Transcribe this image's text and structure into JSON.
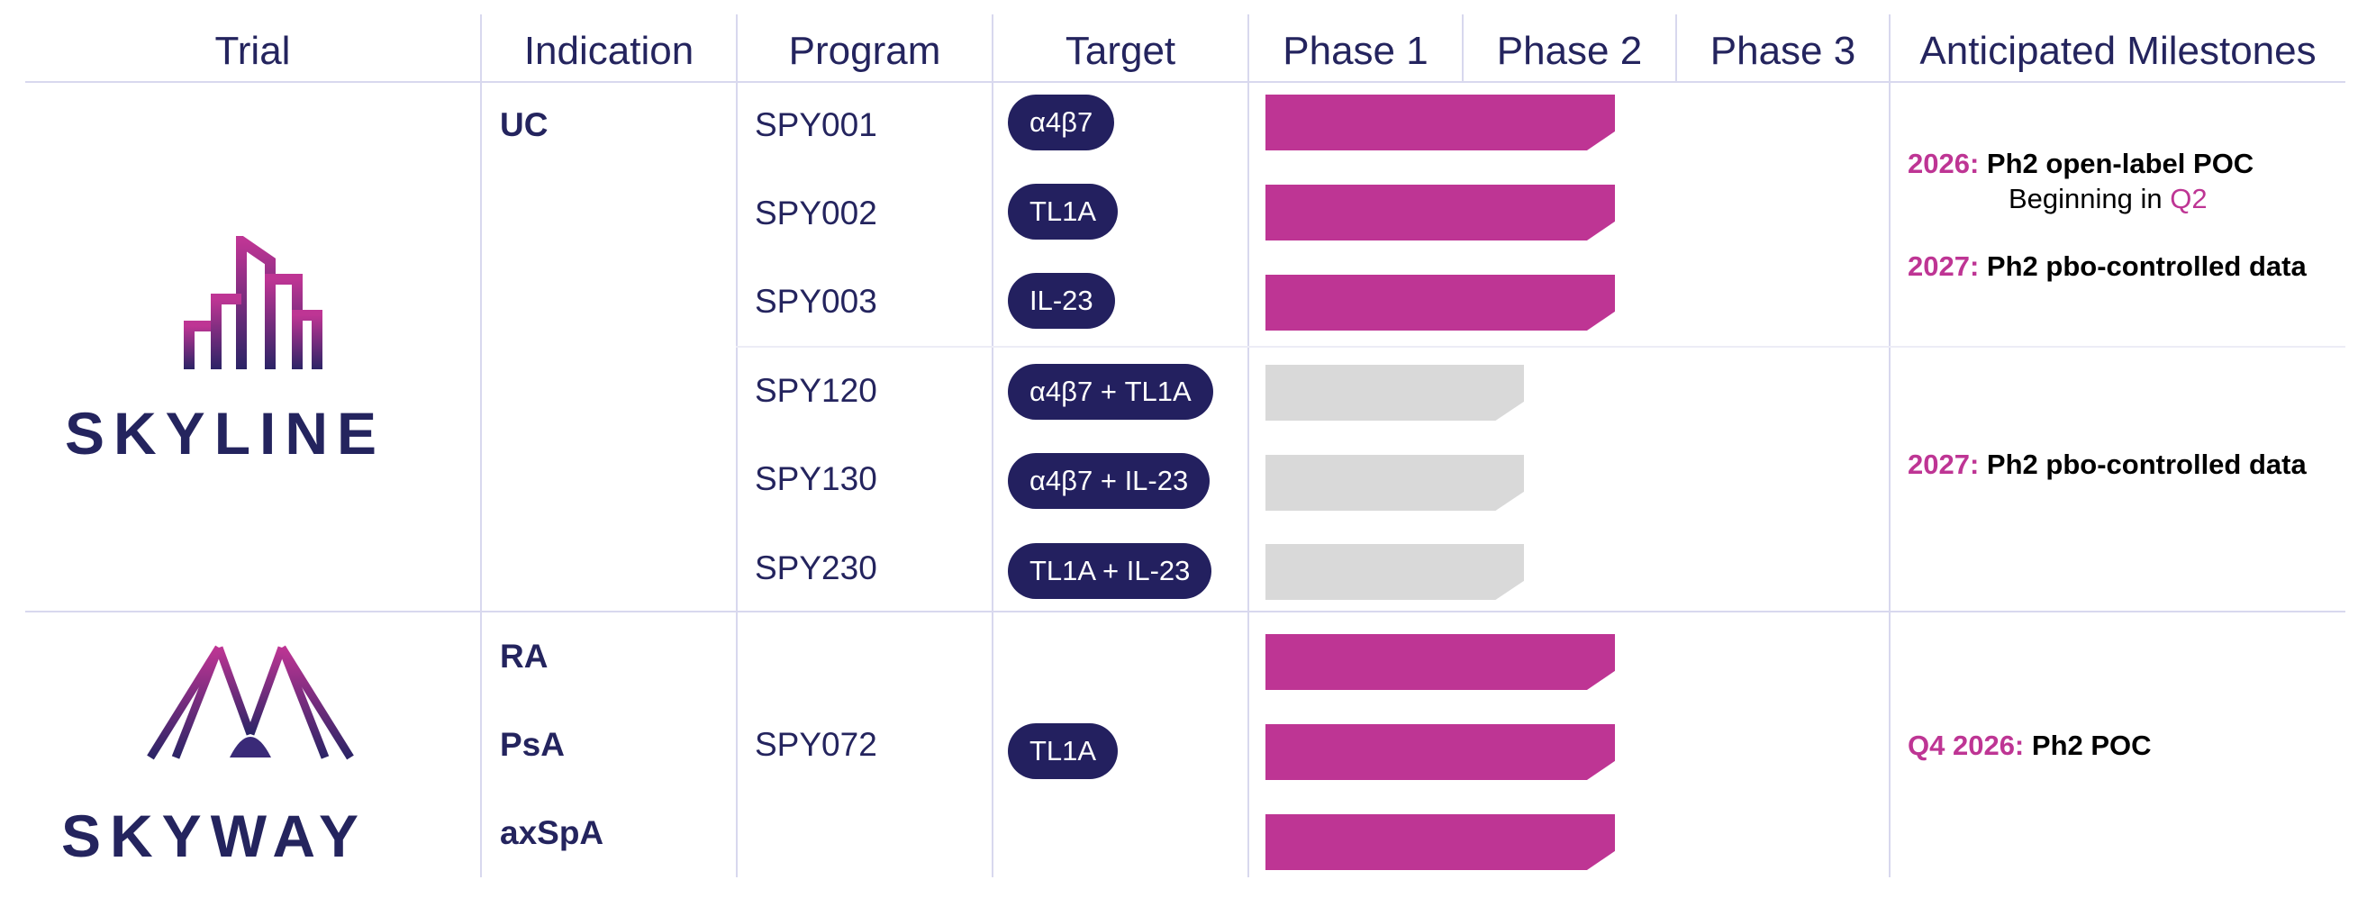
{
  "headers": {
    "trial": "Trial",
    "indication": "Indication",
    "program": "Program",
    "target": "Target",
    "phase1": "Phase 1",
    "phase2": "Phase 2",
    "phase3": "Phase 3",
    "milestones": "Anticipated Milestones"
  },
  "trials": {
    "skyline": {
      "name": "SKYLINE",
      "indication": "UC"
    },
    "skyway": {
      "name": "SKYWAY",
      "indications": [
        "RA",
        "PsA",
        "axSpA"
      ],
      "program": "SPY072",
      "target": "TL1A"
    }
  },
  "programs": [
    {
      "name": "SPY001",
      "target": "α4β7",
      "stage": "active"
    },
    {
      "name": "SPY002",
      "target": "TL1A",
      "stage": "active"
    },
    {
      "name": "SPY003",
      "target": "IL-23",
      "stage": "active"
    },
    {
      "name": "SPY120",
      "target": "α4β7 + TL1A",
      "stage": "planned"
    },
    {
      "name": "SPY130",
      "target": "α4β7 + IL-23",
      "stage": "planned"
    },
    {
      "name": "SPY230",
      "target": "TL1A + IL-23",
      "stage": "planned"
    }
  ],
  "milestones": {
    "m1": {
      "year": "2026:",
      "text": "Ph2 open-label POC",
      "sub_prefix": "Beginning in",
      "sub_quarter": "Q2"
    },
    "m2": {
      "year": "2027:",
      "text": "Ph2 pbo-controlled data"
    },
    "m3": {
      "year": "2027:",
      "text": "Ph2 pbo-controlled data"
    },
    "m4": {
      "year": "Q4 2026:",
      "text": "Ph2 POC"
    }
  },
  "colors": {
    "accent": "#be3594",
    "navy": "#23205f",
    "inactive": "#d9d9d9",
    "grid": "#d8d8ee"
  }
}
